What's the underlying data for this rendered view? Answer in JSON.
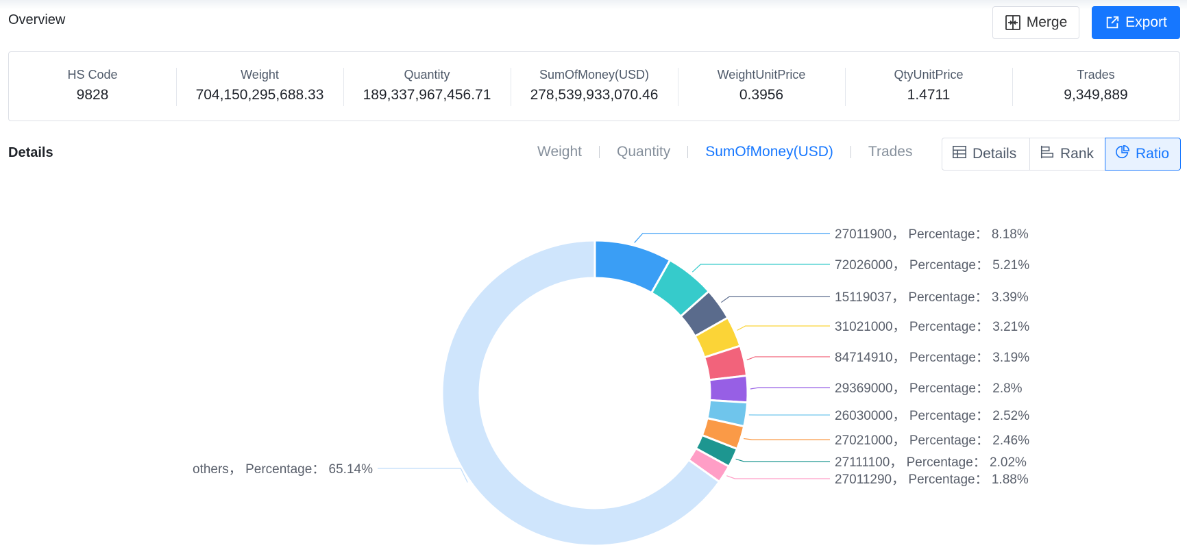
{
  "overview": {
    "title": "Overview",
    "merge_label": "Merge",
    "export_label": "Export",
    "stats": [
      {
        "label": "HS Code",
        "value": "9828"
      },
      {
        "label": "Weight",
        "value": "704,150,295,688.33"
      },
      {
        "label": "Quantity",
        "value": "189,337,967,456.71"
      },
      {
        "label": "SumOfMoney(USD)",
        "value": "278,539,933,070.46"
      },
      {
        "label": "WeightUnitPrice",
        "value": "0.3956"
      },
      {
        "label": "QtyUnitPrice",
        "value": "1.4711"
      },
      {
        "label": "Trades",
        "value": "9,349,889"
      }
    ]
  },
  "details": {
    "title": "Details",
    "metric_tabs": [
      "Weight",
      "Quantity",
      "SumOfMoney(USD)",
      "Trades"
    ],
    "active_metric": "SumOfMoney(USD)",
    "view_tabs": [
      "Details",
      "Rank",
      "Ratio"
    ],
    "active_view": "Ratio"
  },
  "chart_data": {
    "type": "pie",
    "variant": "donut",
    "label_prefix": "Percentage：",
    "slices": [
      {
        "name": "27011900",
        "value": 8.18,
        "label": "27011900，  Percentage：  8.18%",
        "color": "#3a9ef5"
      },
      {
        "name": "72026000",
        "value": 5.21,
        "label": "72026000，  Percentage：  5.21%",
        "color": "#36cbcb"
      },
      {
        "name": "15119037",
        "value": 3.39,
        "label": "15119037，  Percentage：  3.39%",
        "color": "#5a6b8c"
      },
      {
        "name": "31021000",
        "value": 3.21,
        "label": "31021000，  Percentage：  3.21%",
        "color": "#fbd437"
      },
      {
        "name": "84714910",
        "value": 3.19,
        "label": "84714910，  Percentage：  3.19%",
        "color": "#f2637b"
      },
      {
        "name": "29369000",
        "value": 2.8,
        "label": "29369000，  Percentage：  2.8%",
        "color": "#975fe5"
      },
      {
        "name": "26030000",
        "value": 2.52,
        "label": "26030000，  Percentage：  2.52%",
        "color": "#6fc5ec"
      },
      {
        "name": "27021000",
        "value": 2.46,
        "label": "27021000，  Percentage：  2.46%",
        "color": "#fa9a47"
      },
      {
        "name": "27111100",
        "value": 2.02,
        "label": "27111100，  Percentage：  2.02%",
        "color": "#1d9690"
      },
      {
        "name": "27011290",
        "value": 1.88,
        "label": "27011290，  Percentage：  1.88%",
        "color": "#ff9ec6"
      },
      {
        "name": "others",
        "value": 65.14,
        "label": "others，  Percentage：  65.14%",
        "color": "#cfe5fc"
      }
    ]
  }
}
